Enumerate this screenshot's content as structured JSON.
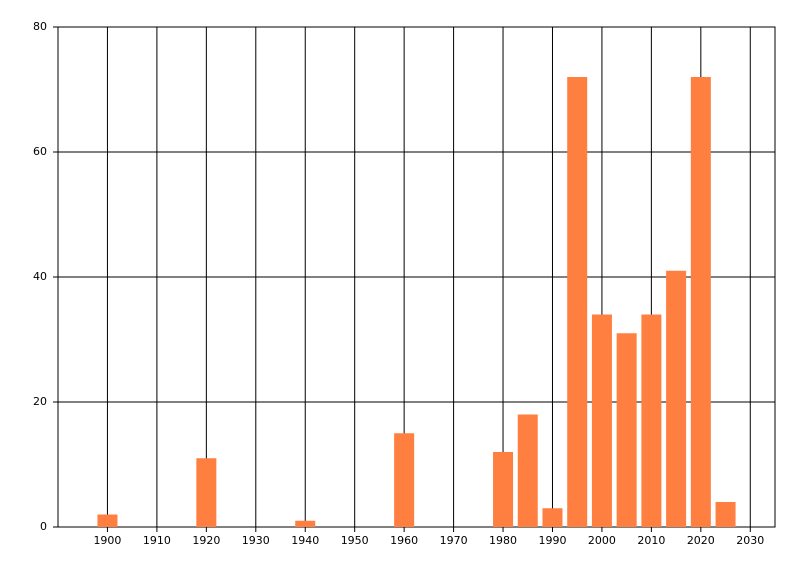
{
  "chart_data": {
    "type": "bar",
    "x": [
      1900,
      1920,
      1940,
      1960,
      1980,
      1985,
      1990,
      1995,
      2000,
      2005,
      2010,
      2015,
      2020,
      2025
    ],
    "values": [
      2,
      11,
      1,
      15,
      12,
      18,
      3,
      72,
      34,
      31,
      34,
      41,
      72,
      4
    ],
    "color": "#ff7f40",
    "xlim": [
      1890,
      2035
    ],
    "xticks": [
      1900,
      1910,
      1920,
      1930,
      1940,
      1950,
      1960,
      1970,
      1980,
      1990,
      2000,
      2010,
      2020,
      2030
    ],
    "ylim": [
      0,
      80
    ],
    "yticks": [
      0,
      20,
      40,
      60,
      80
    ],
    "grid": true
  }
}
